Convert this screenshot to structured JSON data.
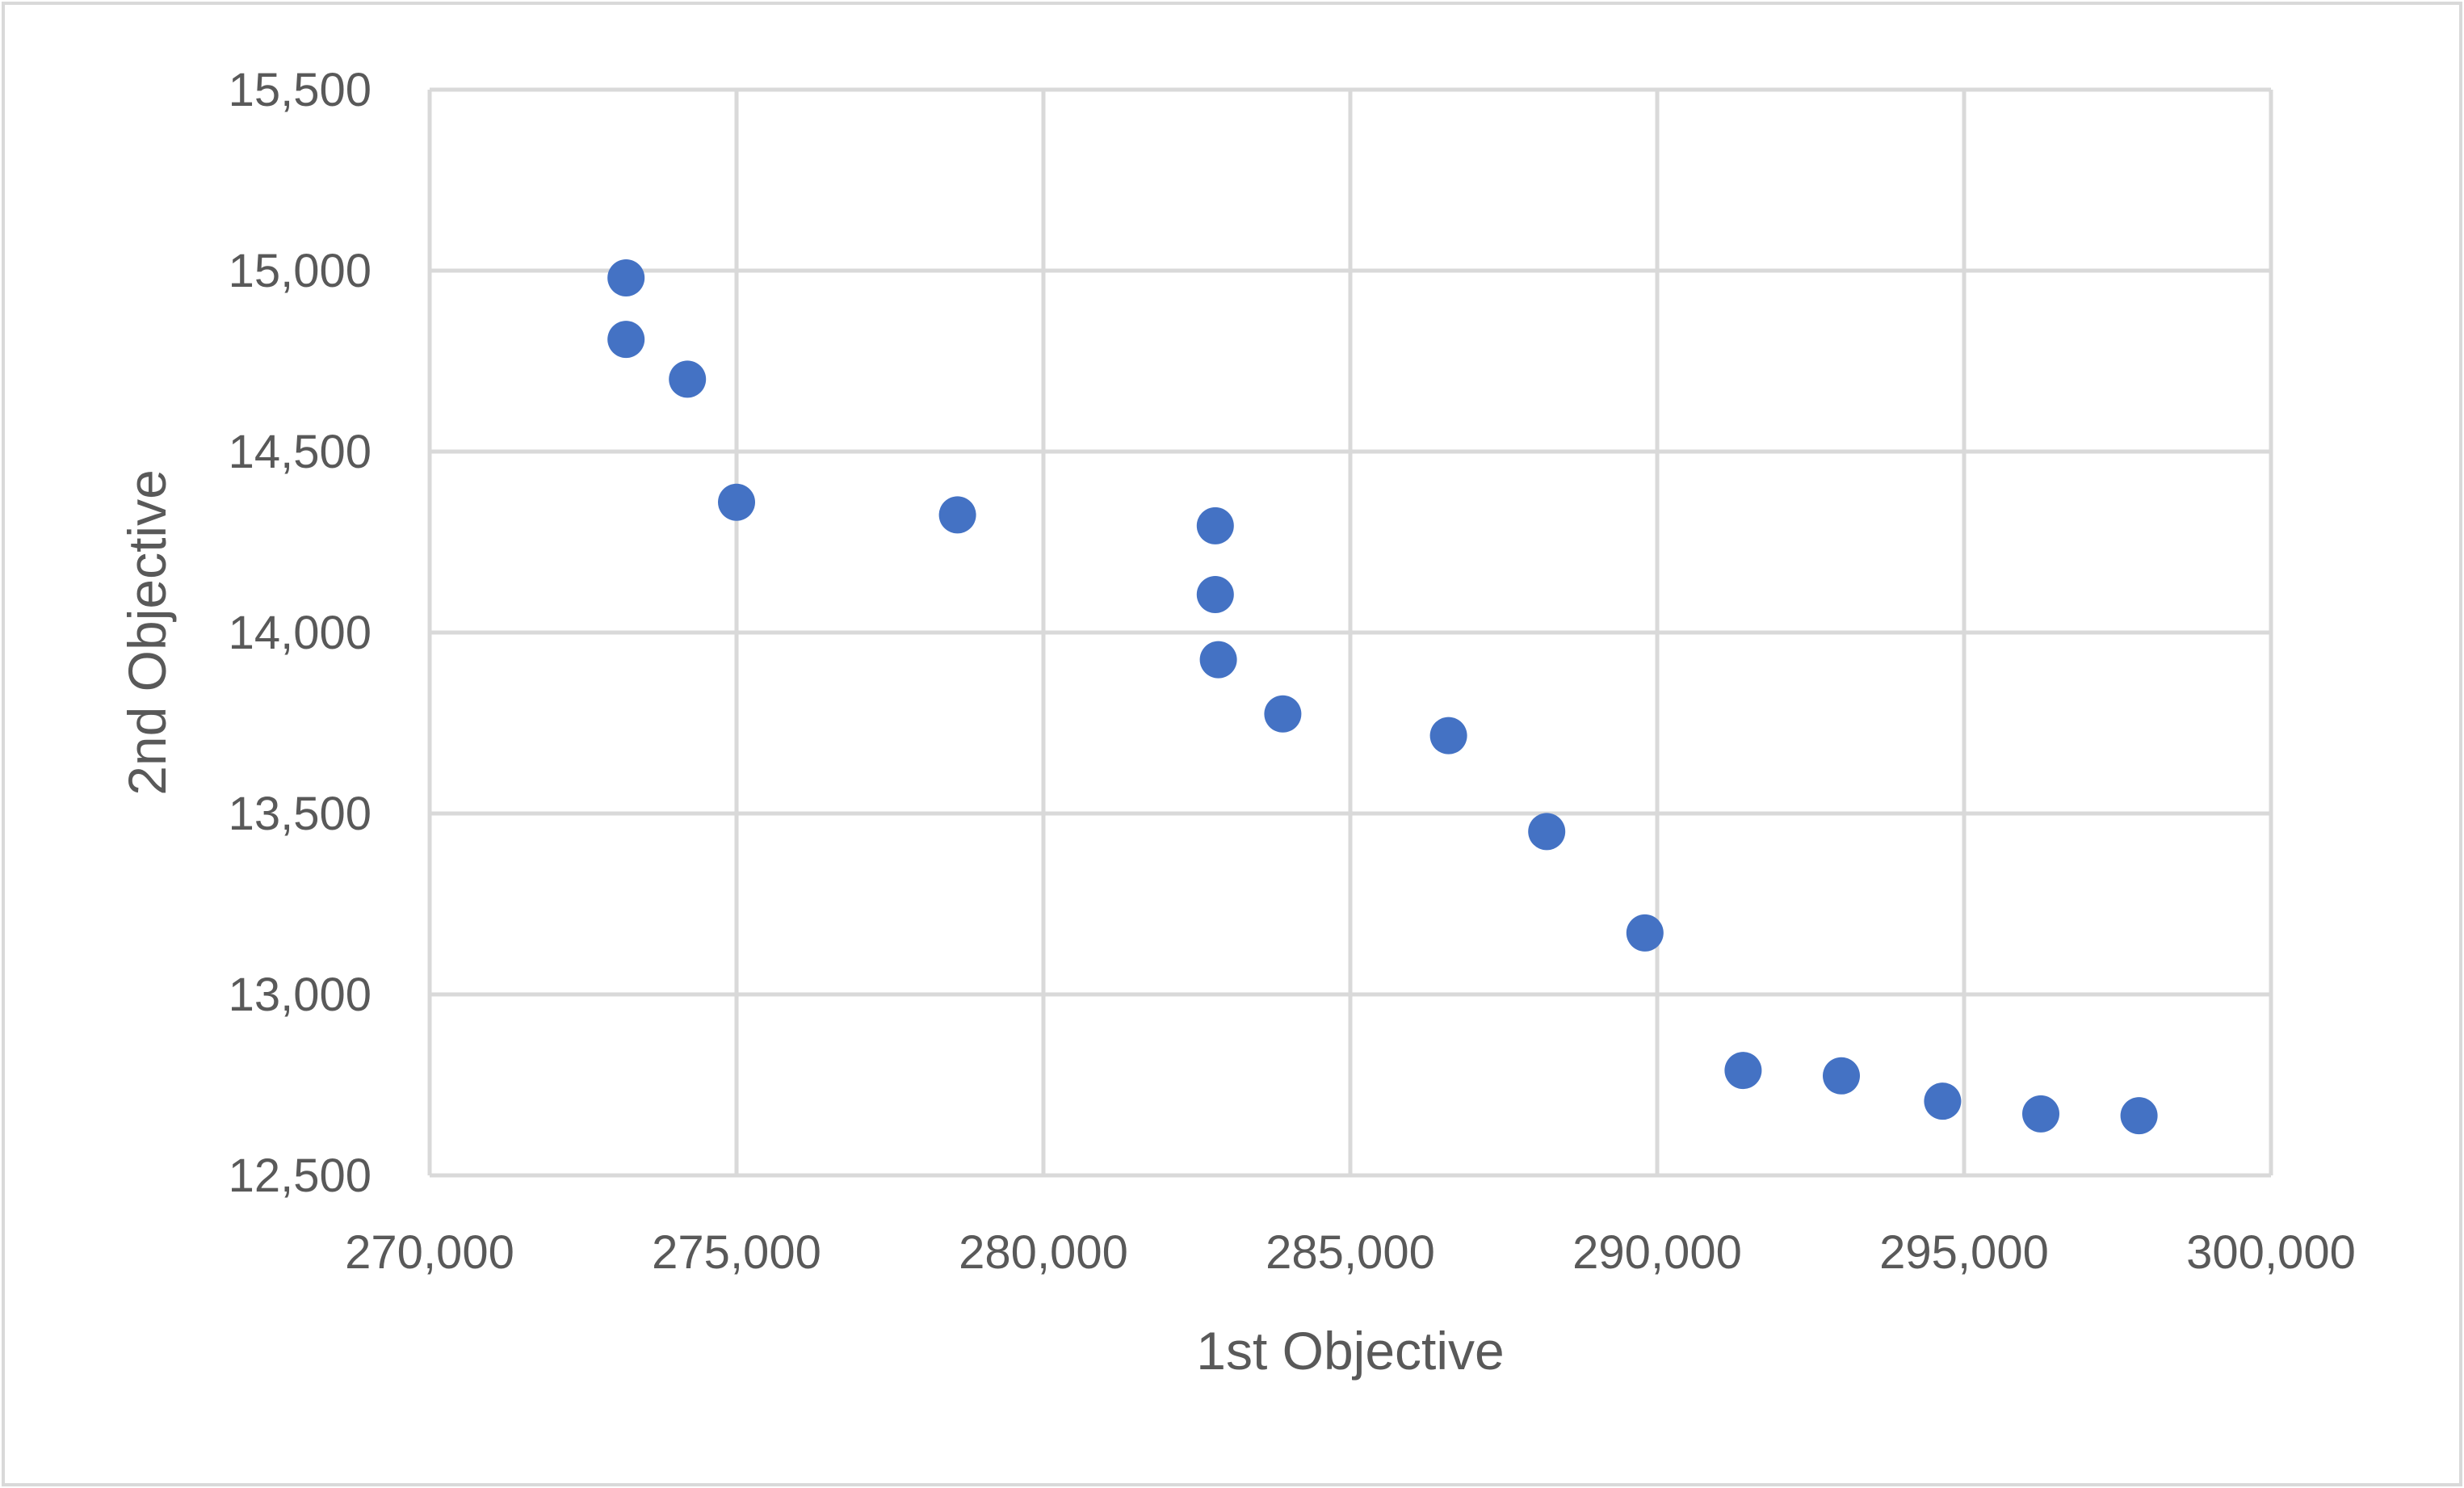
{
  "chart_data": {
    "type": "scatter",
    "title": "",
    "xlabel": "1st Objective",
    "ylabel": "2nd Objective",
    "xlim": [
      270000,
      300000
    ],
    "ylim": [
      12500,
      15500
    ],
    "x_ticks": [
      270000,
      275000,
      280000,
      285000,
      290000,
      295000,
      300000
    ],
    "y_ticks": [
      12500,
      13000,
      13500,
      14000,
      14500,
      15000,
      15500
    ],
    "x_tick_labels": [
      "270,000",
      "275,000",
      "280,000",
      "285,000",
      "290,000",
      "295,000",
      "300,000"
    ],
    "y_tick_labels": [
      "12,500",
      "13,000",
      "13,500",
      "14,000",
      "14,500",
      "15,000",
      "15,500"
    ],
    "grid": true,
    "legend": "none",
    "marker_color": "#4472C4",
    "gridline_color": "#D9D9D9",
    "frame_color": "#D9D9D9",
    "text_color": "#595959",
    "series": [
      {
        "points": [
          {
            "x": 273200,
            "y": 14980
          },
          {
            "x": 273200,
            "y": 14810
          },
          {
            "x": 274200,
            "y": 14700
          },
          {
            "x": 275000,
            "y": 14360
          },
          {
            "x": 278600,
            "y": 14325
          },
          {
            "x": 282800,
            "y": 14295
          },
          {
            "x": 282800,
            "y": 14105
          },
          {
            "x": 282850,
            "y": 13925
          },
          {
            "x": 283900,
            "y": 13775
          },
          {
            "x": 286600,
            "y": 13715
          },
          {
            "x": 288200,
            "y": 13450
          },
          {
            "x": 289800,
            "y": 13170
          },
          {
            "x": 291400,
            "y": 12790
          },
          {
            "x": 293000,
            "y": 12775
          },
          {
            "x": 294650,
            "y": 12705
          },
          {
            "x": 296250,
            "y": 12670
          },
          {
            "x": 297850,
            "y": 12665
          }
        ]
      }
    ]
  }
}
